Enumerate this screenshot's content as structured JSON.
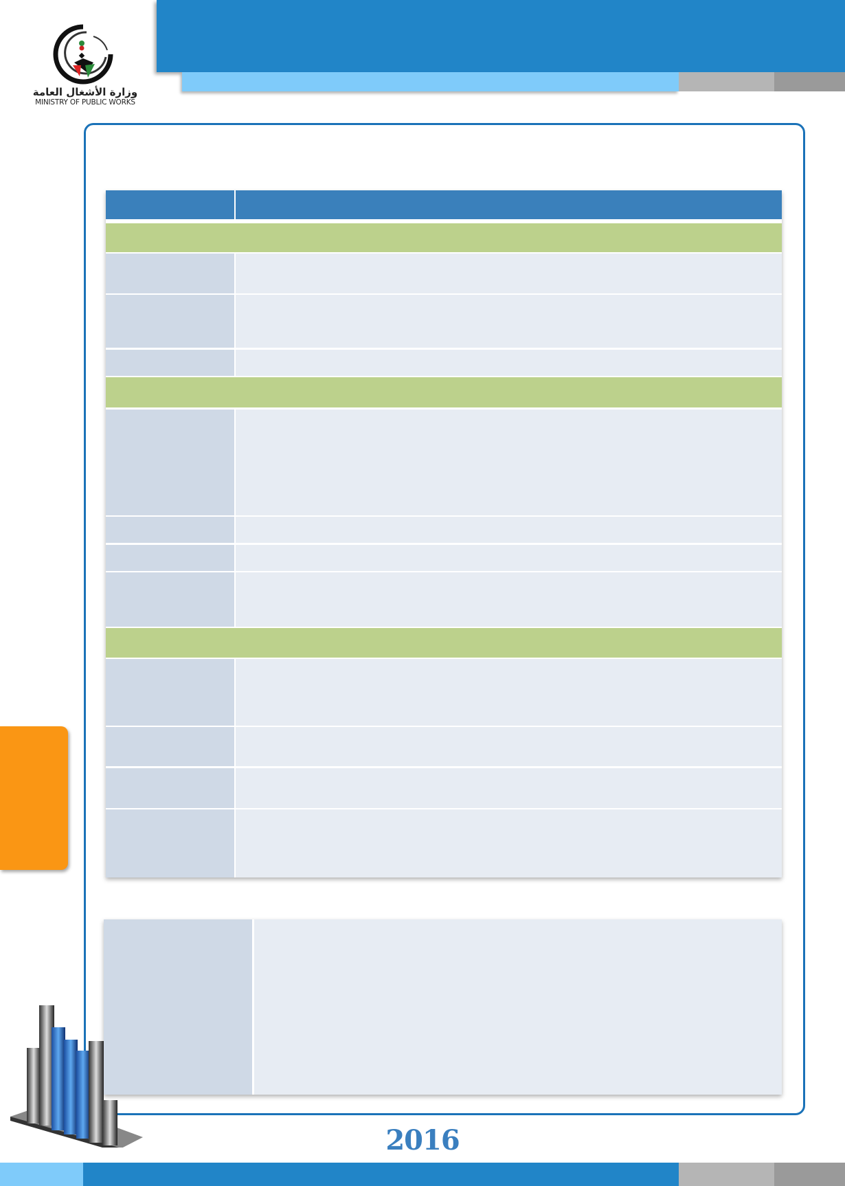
{
  "header": {
    "logo_text_ar": "وزارة الأشغال العامة",
    "logo_text_en": "MINISTRY OF PUBLIC WORKS"
  },
  "colors": {
    "primary_blue": "#2185c8",
    "light_blue": "#7fcbfa",
    "table_header": "#3a80bb",
    "section_green": "#bcd18c",
    "label_cell": "#cfd9e6",
    "value_cell": "#e7ecf3",
    "side_tab": "#fa9614",
    "frame": "#1a72b8"
  },
  "footer": {
    "year": "2016"
  },
  "icons": {
    "logo": "ministry-logo",
    "decoration": "bar-chart-3d-icon"
  }
}
